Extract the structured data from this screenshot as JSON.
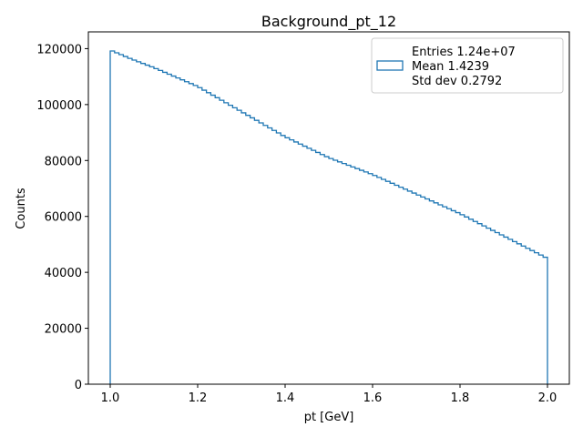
{
  "chart_data": {
    "type": "histogram",
    "title": "Background_pt_12",
    "xlabel": "pt [GeV]",
    "ylabel": "Counts",
    "xlim": [
      0.95,
      2.05
    ],
    "ylim": [
      0,
      126000
    ],
    "xticks": [
      1.0,
      1.2,
      1.4,
      1.6,
      1.8,
      2.0
    ],
    "xtick_labels": [
      "1.0",
      "1.2",
      "1.4",
      "1.6",
      "1.8",
      "2.0"
    ],
    "yticks": [
      0,
      20000,
      40000,
      60000,
      80000,
      100000,
      120000
    ],
    "ytick_labels": [
      "0",
      "20000",
      "40000",
      "60000",
      "80000",
      "100000",
      "120000"
    ],
    "grid": false,
    "legend_position": "top-right",
    "series_color": "#1f77b4",
    "bins": {
      "start": 1.0,
      "end": 2.0,
      "count": 100
    },
    "control_points": [
      {
        "x": 1.0,
        "y": 119500
      },
      {
        "x": 1.05,
        "y": 116200
      },
      {
        "x": 1.1,
        "y": 113200
      },
      {
        "x": 1.2,
        "y": 106500
      },
      {
        "x": 1.3,
        "y": 97500
      },
      {
        "x": 1.4,
        "y": 88500
      },
      {
        "x": 1.5,
        "y": 81000
      },
      {
        "x": 1.6,
        "y": 75000
      },
      {
        "x": 1.7,
        "y": 68000
      },
      {
        "x": 1.8,
        "y": 61000
      },
      {
        "x": 1.9,
        "y": 53000
      },
      {
        "x": 2.0,
        "y": 45000
      }
    ],
    "legend": {
      "lines": [
        "Entries 1.24e+07",
        "Mean 1.4239",
        "Std dev 0.2792"
      ]
    }
  }
}
